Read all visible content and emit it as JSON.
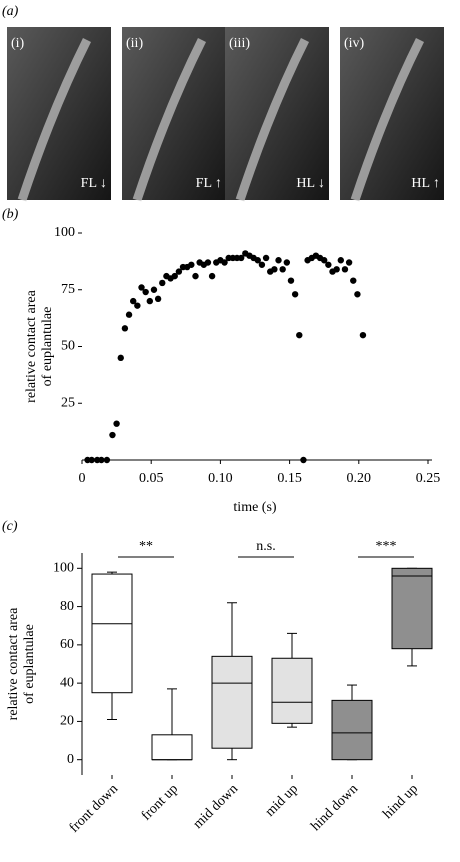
{
  "panel_labels": [
    "(a)",
    "(b)",
    "(c)"
  ],
  "photos": [
    {
      "label": "(i)",
      "caption": "FL ↓"
    },
    {
      "label": "(ii)",
      "caption": "FL ↑"
    },
    {
      "label": "(iii)",
      "caption": "HL ↓"
    },
    {
      "label": "(iv)",
      "caption": "HL ↑"
    }
  ],
  "chart_data": [
    {
      "type": "scatter",
      "xlabel": "time (s)",
      "ylabel": [
        "relative contact area",
        "of euplantulae"
      ],
      "color": "#000000",
      "x": [
        0.004,
        0.007,
        0.011,
        0.014,
        0.018,
        0.022,
        0.025,
        0.028,
        0.031,
        0.034,
        0.037,
        0.04,
        0.043,
        0.046,
        0.049,
        0.052,
        0.055,
        0.058,
        0.061,
        0.064,
        0.067,
        0.07,
        0.073,
        0.076,
        0.079,
        0.082,
        0.085,
        0.088,
        0.091,
        0.094,
        0.097,
        0.1,
        0.103,
        0.106,
        0.109,
        0.112,
        0.115,
        0.118,
        0.121,
        0.124,
        0.127,
        0.13,
        0.133,
        0.136,
        0.139,
        0.142,
        0.145,
        0.148,
        0.151,
        0.154,
        0.157,
        0.16,
        0.163,
        0.166,
        0.169,
        0.172,
        0.175,
        0.178,
        0.181,
        0.184,
        0.187,
        0.19,
        0.193,
        0.196,
        0.199,
        0.203
      ],
      "y": [
        0,
        0,
        0,
        0,
        0,
        11,
        16,
        45,
        58,
        64,
        70,
        68,
        76,
        74,
        70,
        75,
        71,
        78,
        81,
        80,
        81,
        83,
        85,
        85,
        86,
        81,
        87,
        86,
        87,
        81,
        87,
        88,
        87,
        89,
        89,
        89,
        89,
        91,
        90,
        89,
        88,
        86,
        89,
        83,
        84,
        88,
        84,
        87,
        79,
        73,
        55,
        0,
        88,
        89,
        90,
        89,
        88,
        86,
        83,
        84,
        88,
        84,
        87,
        79,
        73,
        55
      ],
      "xlim": [
        0,
        0.25
      ],
      "xticks": [
        0,
        0.05,
        {
          "value": 0.1,
          "label": "0.10"
        },
        0.15,
        {
          "value": 0.2,
          "label": "0.20"
        },
        0.25
      ],
      "ylim": [
        0,
        100
      ],
      "yticks": [
        25,
        50,
        75,
        100
      ]
    },
    {
      "type": "box",
      "ylabel": [
        "relative contact area",
        "of euplantulae"
      ],
      "categories": [
        "front down",
        "front up",
        "mid down",
        "mid up",
        "hind down",
        "hind up"
      ],
      "colors": [
        "#ffffff",
        "#ffffff",
        "#e2e2e2",
        "#e2e2e2",
        "#8f8f8f",
        "#8f8f8f"
      ],
      "whisker_low": [
        21,
        0,
        0,
        17,
        0,
        49
      ],
      "q1": [
        35,
        0,
        6,
        19,
        0,
        58
      ],
      "median": [
        71,
        0,
        40,
        30,
        14,
        96
      ],
      "q3": [
        97,
        13,
        54,
        53,
        31,
        100
      ],
      "whisker_high": [
        98,
        37,
        82,
        66,
        39,
        100
      ],
      "ylim": [
        -8,
        108
      ],
      "yticks": [
        0,
        20,
        40,
        60,
        80,
        100
      ],
      "annotations": [
        "**",
        "n.s.",
        "***"
      ]
    }
  ]
}
